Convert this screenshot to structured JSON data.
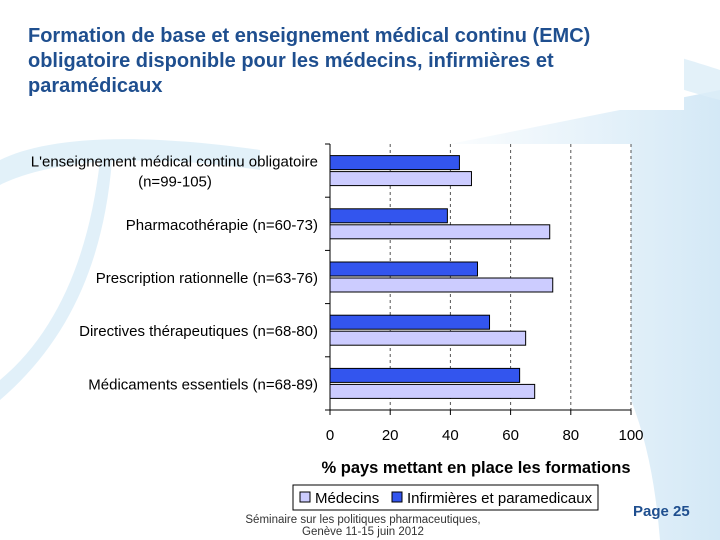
{
  "slide": {
    "title": "Formation de base et enseignement médical continu (EMC) obligatoire disponible pour les médecins, infirmières et paramédicaux",
    "footer_line1": "Séminaire sur les politiques pharmaceutiques,",
    "footer_line2": "Genève 11-15 juin 2012",
    "page_label": "Page 25"
  },
  "colors": {
    "medecins": "#ccccff",
    "infirmieres": "#3355ee",
    "title": "#1f4f8f"
  },
  "chart_data": {
    "type": "bar",
    "orientation": "horizontal",
    "categories": [
      "L'enseignement médical continu obligatoire (n=99-105)",
      "Pharmacothérapie (n=60-73)",
      "Prescription rationnelle (n=63-76)",
      "Directives thérapeutiques (n=68-80)",
      "Médicaments essentiels (n=68-89)"
    ],
    "category_lines": [
      [
        "L'enseignement médical continu obligatoire",
        "(n=99-105)"
      ],
      [
        "Pharmacothérapie (n=60-73)"
      ],
      [
        "Prescription rationnelle (n=63-76)"
      ],
      [
        "Directives thérapeutiques (n=68-80)"
      ],
      [
        "Médicaments essentiels (n=68-89)"
      ]
    ],
    "series": [
      {
        "name": "Infirmières et paramedicaux",
        "values": [
          43,
          39,
          49,
          53,
          63
        ]
      },
      {
        "name": "Médecins",
        "values": [
          47,
          73,
          74,
          65,
          68
        ]
      }
    ],
    "legend_order": [
      "Médecins",
      "Infirmières et paramedicaux"
    ],
    "xlabel": "% pays mettant en place les formations",
    "xlim": [
      0,
      100
    ],
    "xticks": [
      0,
      20,
      40,
      60,
      80,
      100
    ],
    "grid": true,
    "legend_position": "bottom"
  }
}
